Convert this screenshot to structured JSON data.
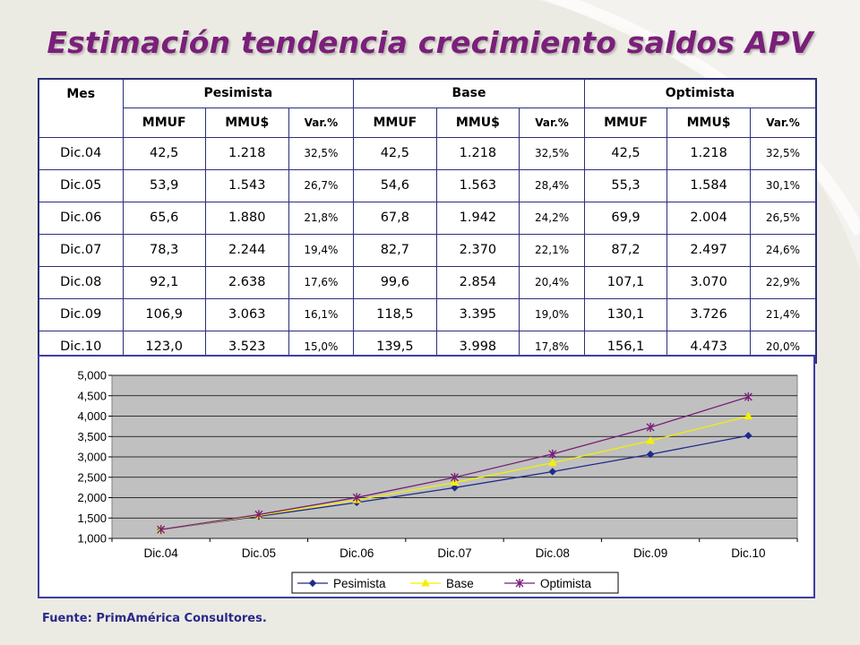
{
  "title": "Estimación tendencia crecimiento saldos APV",
  "table": {
    "header_mes": "Mes",
    "groups": [
      "Pesimista",
      "Base",
      "Optimista"
    ],
    "subheaders": [
      "MMUF",
      "MMU$",
      "Var.%"
    ],
    "rows": [
      {
        "mes": "Dic.04",
        "cells": [
          "42,5",
          "1.218",
          "32,5%",
          "42,5",
          "1.218",
          "32,5%",
          "42,5",
          "1.218",
          "32,5%"
        ]
      },
      {
        "mes": "Dic.05",
        "cells": [
          "53,9",
          "1.543",
          "26,7%",
          "54,6",
          "1.563",
          "28,4%",
          "55,3",
          "1.584",
          "30,1%"
        ]
      },
      {
        "mes": "Dic.06",
        "cells": [
          "65,6",
          "1.880",
          "21,8%",
          "67,8",
          "1.942",
          "24,2%",
          "69,9",
          "2.004",
          "26,5%"
        ]
      },
      {
        "mes": "Dic.07",
        "cells": [
          "78,3",
          "2.244",
          "19,4%",
          "82,7",
          "2.370",
          "22,1%",
          "87,2",
          "2.497",
          "24,6%"
        ]
      },
      {
        "mes": "Dic.08",
        "cells": [
          "92,1",
          "2.638",
          "17,6%",
          "99,6",
          "2.854",
          "20,4%",
          "107,1",
          "3.070",
          "22,9%"
        ]
      },
      {
        "mes": "Dic.09",
        "cells": [
          "106,9",
          "3.063",
          "16,1%",
          "118,5",
          "3.395",
          "19,0%",
          "130,1",
          "3.726",
          "21,4%"
        ]
      },
      {
        "mes": "Dic.10",
        "cells": [
          "123,0",
          "3.523",
          "15,0%",
          "139,5",
          "3.998",
          "17,8%",
          "156,1",
          "4.473",
          "20,0%"
        ]
      }
    ]
  },
  "chart_data": {
    "type": "line",
    "categories": [
      "Dic.04",
      "Dic.05",
      "Dic.06",
      "Dic.07",
      "Dic.08",
      "Dic.09",
      "Dic.10"
    ],
    "series": [
      {
        "name": "Pesimista",
        "values": [
          1218,
          1543,
          1880,
          2244,
          2638,
          3063,
          3523
        ],
        "color": "#1f2a8c",
        "marker": "diamond"
      },
      {
        "name": "Base",
        "values": [
          1218,
          1563,
          1942,
          2370,
          2854,
          3395,
          3998
        ],
        "color": "#f2f200",
        "marker": "triangle"
      },
      {
        "name": "Optimista",
        "values": [
          1218,
          1584,
          2004,
          2497,
          3070,
          3726,
          4473
        ],
        "color": "#7a1f7a",
        "marker": "star"
      }
    ],
    "yticks": [
      "1,000",
      "1,500",
      "2,000",
      "2,500",
      "3,000",
      "3,500",
      "4,000",
      "4,500",
      "5,000"
    ],
    "ylim": [
      1000,
      5000
    ],
    "grid": true,
    "legend": "bottom",
    "plot_background": "#c0c0c0"
  },
  "source": "Fuente: PrimAmérica Consultores."
}
